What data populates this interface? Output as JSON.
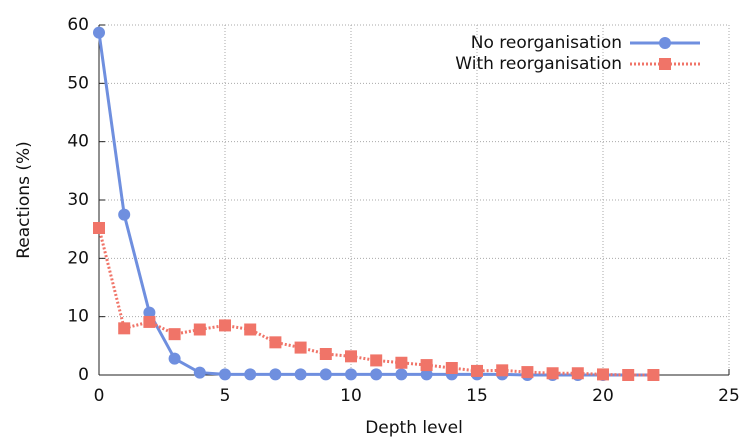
{
  "chart_data": {
    "type": "line",
    "x_label": "Depth level",
    "y_label": "Reactions (%)",
    "x": [
      0,
      1,
      2,
      3,
      4,
      5,
      6,
      7,
      8,
      9,
      10,
      11,
      12,
      13,
      14,
      15,
      16,
      17,
      18,
      19,
      20,
      21,
      22
    ],
    "series": [
      {
        "name": "No reorganisation",
        "color": "#6f8fdf",
        "marker": "circle",
        "dash": "solid",
        "values": [
          58.7,
          27.5,
          10.7,
          2.8,
          0.4,
          0.1,
          0.1,
          0.1,
          0.1,
          0.1,
          0.1,
          0.1,
          0.1,
          0.1,
          0.1,
          0.1,
          0.1,
          0,
          0,
          0,
          0,
          0,
          0
        ]
      },
      {
        "name": "With reorganisation",
        "color": "#f07468",
        "marker": "square",
        "dash": "dotted",
        "values": [
          25.2,
          8.0,
          9.1,
          7.0,
          7.8,
          8.5,
          7.8,
          5.6,
          4.7,
          3.6,
          3.2,
          2.5,
          2.1,
          1.7,
          1.2,
          0.7,
          0.8,
          0.5,
          0.3,
          0.3,
          0.1,
          0,
          0
        ]
      }
    ],
    "xlim": [
      0,
      25
    ],
    "xticks": [
      0,
      5,
      10,
      15,
      20,
      25
    ],
    "ylim": [
      0,
      60
    ],
    "yticks": [
      0,
      10,
      20,
      30,
      40,
      50,
      60
    ],
    "grid": true,
    "legend": "upper right"
  }
}
